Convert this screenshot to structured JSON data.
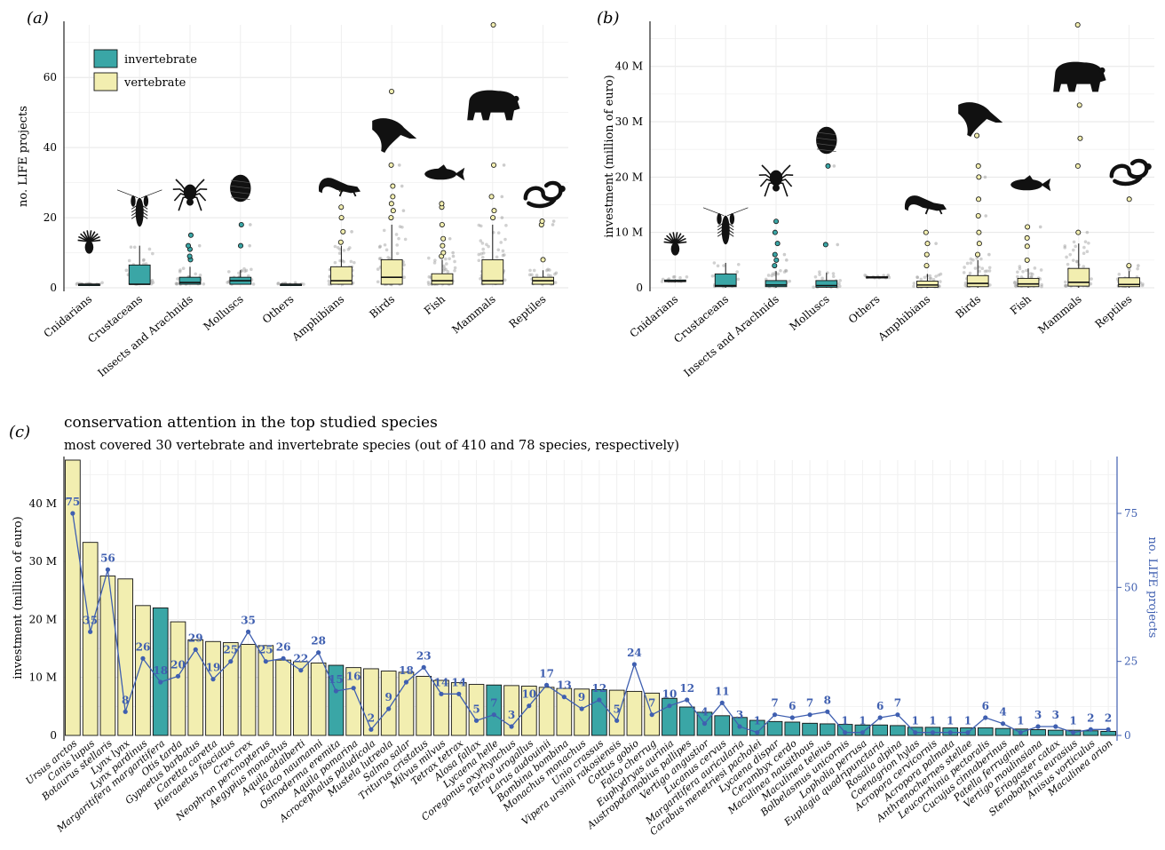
{
  "panels": {
    "a": {
      "label": "(a)"
    },
    "b": {
      "label": "(b)"
    },
    "c": {
      "label": "(c)",
      "title": "conservation attention in the top studied species",
      "subtitle": "most covered 30 vertebrate and invertebrate species (out of 410 and 78 species, respectively)"
    }
  },
  "colors": {
    "invertebrate": "#3aa6a6",
    "vertebrate": "#f2eeb0",
    "line": "#3f5fb0",
    "jitter": "#9a9a9a"
  },
  "chart_data": [
    {
      "id": "a",
      "type": "boxplot",
      "ylabel": "no. LIFE projects",
      "xlabel": "",
      "ylim": [
        0,
        75
      ],
      "yticks": [
        0,
        20,
        40,
        60
      ],
      "grid": true,
      "legend": {
        "placement": "top-left",
        "entries": [
          {
            "name": "invertebrate",
            "color": "#3aa6a6"
          },
          {
            "name": "vertebrate",
            "color": "#f2eeb0"
          }
        ]
      },
      "categories": [
        "Cnidarians",
        "Crustaceans",
        "Insects and Arachnids",
        "Molluscs",
        "Others",
        "Amphibians",
        "Birds",
        "Fish",
        "Mammals",
        "Reptiles"
      ],
      "groups": [
        "invertebrate",
        "invertebrate",
        "invertebrate",
        "invertebrate",
        "invertebrate",
        "vertebrate",
        "vertebrate",
        "vertebrate",
        "vertebrate",
        "vertebrate"
      ],
      "boxes": [
        {
          "q1": 1,
          "median": 1,
          "q3": 1,
          "whisker_low": 1,
          "whisker_high": 1,
          "outliers": []
        },
        {
          "q1": 1,
          "median": 1,
          "q3": 6.5,
          "whisker_low": 1,
          "whisker_high": 12,
          "outliers": []
        },
        {
          "q1": 1,
          "median": 1.5,
          "q3": 3,
          "whisker_low": 1,
          "whisker_high": 6,
          "outliers": [
            8,
            9,
            11,
            12,
            15
          ]
        },
        {
          "q1": 1,
          "median": 2,
          "q3": 3,
          "whisker_low": 1,
          "whisker_high": 5,
          "outliers": [
            12,
            18
          ]
        },
        {
          "q1": 1,
          "median": 1,
          "q3": 1,
          "whisker_low": 1,
          "whisker_high": 1,
          "outliers": []
        },
        {
          "q1": 1,
          "median": 2,
          "q3": 6,
          "whisker_low": 1,
          "whisker_high": 12,
          "outliers": [
            13,
            16,
            20,
            23,
            28
          ]
        },
        {
          "q1": 1,
          "median": 3,
          "q3": 8,
          "whisker_low": 1,
          "whisker_high": 18,
          "outliers": [
            20,
            22,
            24,
            26,
            29,
            35,
            56
          ]
        },
        {
          "q1": 1,
          "median": 2,
          "q3": 4,
          "whisker_low": 1,
          "whisker_high": 8,
          "outliers": [
            9,
            10,
            12,
            14,
            18,
            23,
            24
          ]
        },
        {
          "q1": 1,
          "median": 2,
          "q3": 8,
          "whisker_low": 1,
          "whisker_high": 18,
          "outliers": [
            20,
            22,
            26,
            35,
            75
          ]
        },
        {
          "q1": 1,
          "median": 2,
          "q3": 3,
          "whisker_low": 1,
          "whisker_high": 5,
          "outliers": [
            8,
            18,
            19
          ]
        }
      ],
      "silhouettes": [
        "coral",
        "lobster",
        "spider",
        "snail",
        "none",
        "lizard",
        "bird",
        "fish",
        "bear",
        "snake"
      ]
    },
    {
      "id": "b",
      "type": "boxplot",
      "ylabel": "investment (million of euro)",
      "xlabel": "",
      "ylim": [
        0,
        47.5
      ],
      "yticks": [
        0,
        10,
        20,
        30,
        40
      ],
      "ytick_labels": [
        "0",
        "10 M",
        "20 M",
        "30 M",
        "40 M"
      ],
      "grid": true,
      "categories": [
        "Cnidarians",
        "Crustaceans",
        "Insects and Arachnids",
        "Molluscs",
        "Others",
        "Amphibians",
        "Birds",
        "Fish",
        "Mammals",
        "Reptiles"
      ],
      "groups": [
        "invertebrate",
        "invertebrate",
        "invertebrate",
        "invertebrate",
        "invertebrate",
        "vertebrate",
        "vertebrate",
        "vertebrate",
        "vertebrate",
        "vertebrate"
      ],
      "boxes": [
        {
          "q1": 1.1,
          "median": 1.2,
          "q3": 1.4,
          "whisker_low": 1.0,
          "whisker_high": 1.5,
          "outliers": []
        },
        {
          "q1": 0.2,
          "median": 0.4,
          "q3": 2.5,
          "whisker_low": 0,
          "whisker_high": 4.5,
          "outliers": []
        },
        {
          "q1": 0.2,
          "median": 0.5,
          "q3": 1.3,
          "whisker_low": 0,
          "whisker_high": 3,
          "outliers": [
            4,
            5,
            6,
            8,
            10,
            12
          ]
        },
        {
          "q1": 0.1,
          "median": 0.4,
          "q3": 1.3,
          "whisker_low": 0,
          "whisker_high": 2.7,
          "outliers": [
            7.8,
            22
          ]
        },
        {
          "q1": 1.8,
          "median": 1.9,
          "q3": 2.0,
          "whisker_low": 1.8,
          "whisker_high": 2.0,
          "outliers": []
        },
        {
          "q1": 0.1,
          "median": 0.5,
          "q3": 1.2,
          "whisker_low": 0,
          "whisker_high": 2.5,
          "outliers": [
            4,
            6,
            8,
            10
          ]
        },
        {
          "q1": 0.2,
          "median": 0.8,
          "q3": 2.2,
          "whisker_low": 0,
          "whisker_high": 5,
          "outliers": [
            6,
            8,
            10,
            13,
            16,
            20,
            22,
            27.5
          ]
        },
        {
          "q1": 0.2,
          "median": 0.7,
          "q3": 1.7,
          "whisker_low": 0,
          "whisker_high": 3.5,
          "outliers": [
            5,
            7.5,
            9,
            11
          ]
        },
        {
          "q1": 0.3,
          "median": 1.0,
          "q3": 3.5,
          "whisker_low": 0,
          "whisker_high": 8,
          "outliers": [
            10,
            22,
            27,
            33,
            47.5
          ]
        },
        {
          "q1": 0.2,
          "median": 0.6,
          "q3": 1.8,
          "whisker_low": 0,
          "whisker_high": 3,
          "outliers": [
            4,
            16
          ]
        }
      ],
      "silhouettes": [
        "coral",
        "lobster",
        "spider",
        "snail",
        "none",
        "lizard",
        "bird",
        "fish",
        "bear",
        "snake"
      ]
    },
    {
      "id": "c",
      "type": "bar+line",
      "title": "conservation attention in the top studied species",
      "subtitle": "most covered 30 vertebrate and invertebrate species (out of 410 and 78 species, respectively)",
      "ylabel": "investment (million of euro)",
      "y2label": "no. LIFE projects",
      "ylim": [
        0,
        47.5
      ],
      "yticks": [
        0,
        10,
        20,
        30,
        40
      ],
      "ytick_labels": [
        "0",
        "10 M",
        "20 M",
        "30 M",
        "40 M"
      ],
      "y2lim": [
        0,
        93
      ],
      "y2ticks": [
        0,
        25,
        50,
        75
      ],
      "grid": true,
      "categories": [
        "Ursus arctos",
        "Canis lupus",
        "Botaurus stellaris",
        "Lynx lynx",
        "Lynx pardinus",
        "Margaritifera margaritifera",
        "Otis tarda",
        "Gypaetus barbatus",
        "Caretta caretta",
        "Hieraaetus fasciatus",
        "Crex crex",
        "Neophron percnopterus",
        "Aegypius monachus",
        "Aquila adalberti",
        "Falco naumanni",
        "Osmoderma eremita",
        "Aquila pomarina",
        "Acrocephalus paludicola",
        "Mustela lutreola",
        "Salmo salar",
        "Triturus cristatus",
        "Milvus milvus",
        "Tetrax tetrax",
        "Alosa fallax",
        "Lycaena helle",
        "Coregonus oxyrhynchus",
        "Tetrao urogallus",
        "Larus audouinii",
        "Bombina bombina",
        "Monachus monachus",
        "Unio crassus",
        "Vipera ursinii rakosiensis",
        "Cottus gobio",
        "Falco cherrug",
        "Euphydryas aurinia",
        "Austropotamobius pallipes",
        "Vertigo angustior",
        "Lucanus cervus",
        "Margaritifera auricularia",
        "Carabus menetriesi pacholei",
        "Lycaena dispar",
        "Cerambyx cerdo",
        "Maculinea nausithous",
        "Maculinea teleius",
        "Bolbelasmus unicornis",
        "Lopholia perrusa",
        "Euplagia quadripunctaria",
        "Rosalia alpina",
        "Coenagrion hylas",
        "Acropora cervicornis",
        "Acropora palmata",
        "Anthrenochernes stellae",
        "Leucorrhinia pectoralis",
        "Cucujus cinnaberinus",
        "Patella ferruginea",
        "Vertigo moulinsiana",
        "Eriogaster catax",
        "Stenobothrus eurasius",
        "Anisus vorticulus",
        "Maculinea arion"
      ],
      "group": [
        "vertebrate",
        "vertebrate",
        "vertebrate",
        "vertebrate",
        "vertebrate",
        "invertebrate",
        "vertebrate",
        "vertebrate",
        "vertebrate",
        "vertebrate",
        "vertebrate",
        "vertebrate",
        "vertebrate",
        "vertebrate",
        "vertebrate",
        "invertebrate",
        "vertebrate",
        "vertebrate",
        "vertebrate",
        "vertebrate",
        "vertebrate",
        "vertebrate",
        "vertebrate",
        "vertebrate",
        "invertebrate",
        "vertebrate",
        "vertebrate",
        "vertebrate",
        "vertebrate",
        "vertebrate",
        "invertebrate",
        "vertebrate",
        "vertebrate",
        "vertebrate",
        "invertebrate",
        "invertebrate",
        "invertebrate",
        "invertebrate",
        "invertebrate",
        "invertebrate",
        "invertebrate",
        "invertebrate",
        "invertebrate",
        "invertebrate",
        "invertebrate",
        "invertebrate",
        "invertebrate",
        "invertebrate",
        "invertebrate",
        "invertebrate",
        "invertebrate",
        "invertebrate",
        "invertebrate",
        "invertebrate",
        "invertebrate",
        "invertebrate",
        "invertebrate",
        "invertebrate",
        "invertebrate",
        "invertebrate"
      ],
      "investment_m": [
        47.5,
        33.3,
        27.5,
        27.0,
        22.4,
        22.0,
        19.6,
        16.5,
        16.2,
        16.0,
        15.7,
        15.5,
        13.0,
        12.7,
        12.5,
        12.1,
        11.7,
        11.5,
        11.1,
        10.9,
        10.2,
        9.5,
        9.1,
        8.8,
        8.7,
        8.6,
        8.5,
        8.3,
        8.1,
        8.0,
        7.9,
        7.8,
        7.6,
        7.3,
        6.4,
        4.9,
        4.0,
        3.4,
        3.1,
        2.6,
        2.4,
        2.3,
        2.1,
        2.0,
        1.9,
        1.8,
        1.8,
        1.7,
        1.4,
        1.4,
        1.3,
        1.3,
        1.3,
        1.2,
        1.1,
        1.0,
        0.9,
        0.9,
        0.8,
        0.7
      ],
      "projects": [
        75,
        35,
        56,
        8,
        26,
        18,
        20,
        29,
        19,
        25,
        35,
        25,
        26,
        22,
        28,
        15,
        16,
        2,
        9,
        18,
        23,
        14,
        14,
        5,
        7,
        3,
        10,
        17,
        13,
        9,
        12,
        5,
        24,
        7,
        10,
        12,
        4,
        11,
        3,
        1,
        7,
        6,
        7,
        8,
        1,
        1,
        6,
        7,
        1,
        1,
        1,
        1,
        6,
        4,
        1,
        3,
        3,
        1,
        2,
        2
      ]
    }
  ]
}
